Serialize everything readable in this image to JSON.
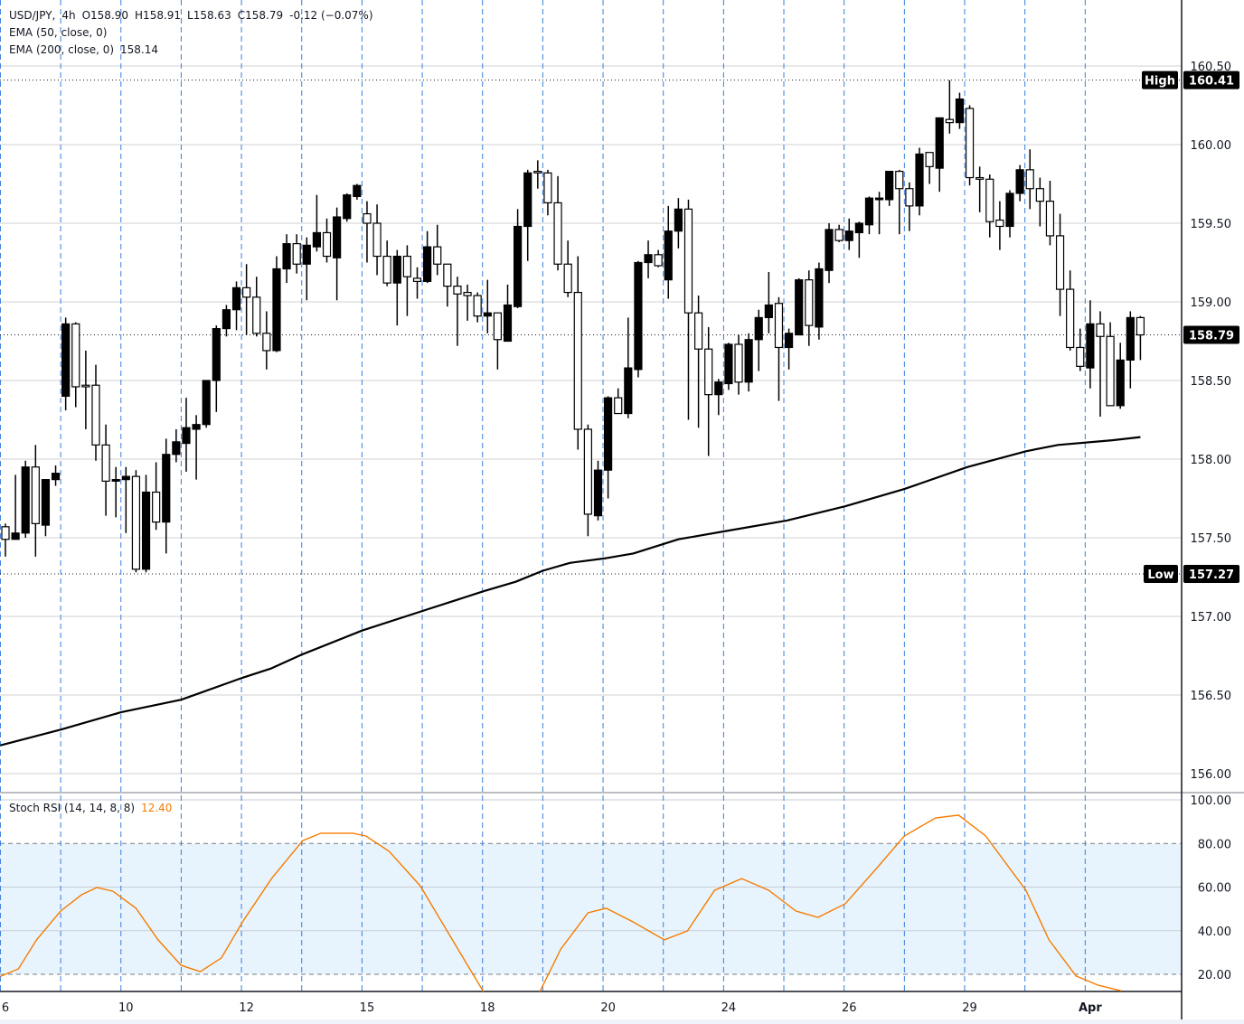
{
  "legend": {
    "symbol": "USD/JPY,",
    "interval": "4h",
    "open": "O158.90",
    "high": "H158.91",
    "low": "L158.63",
    "close": "C158.79",
    "change": "-0.12 (−0.07%)",
    "ema50": "EMA (50, close, 0)",
    "ema200": "EMA (200, close, 0)",
    "ema200_value": "158.14",
    "stoch": "Stoch RSI (14, 14, 8, 8)",
    "stoch_value": "12.40"
  },
  "colors": {
    "bull_candle": "#000000",
    "bear_candle": "#ffffff",
    "ema200": "#000000",
    "stoch_line": "#f57c00",
    "stoch_band": "#e8f4fd",
    "day_separator": "#3b7ddd",
    "grid": "#d0d0d0"
  },
  "chart_data": [
    {
      "type": "candlestick",
      "title": "USD/JPY, 4h",
      "ylim": [
        155.95,
        160.62
      ],
      "y_ticks": [
        "160.50",
        "160.00",
        "159.50",
        "159.00",
        "158.50",
        "158.00",
        "157.50",
        "157.00",
        "156.50",
        "156.00"
      ],
      "x_ticks": [
        {
          "candle": 0,
          "label": "6"
        },
        {
          "candle": 12,
          "label": "10"
        },
        {
          "candle": 24,
          "label": "12"
        },
        {
          "candle": 36,
          "label": "15"
        },
        {
          "candle": 48,
          "label": "18"
        },
        {
          "candle": 60,
          "label": "20"
        },
        {
          "candle": 72,
          "label": "24"
        },
        {
          "candle": 84,
          "label": "26"
        },
        {
          "candle": 96,
          "label": "29"
        },
        {
          "candle": 108,
          "label": "Apr"
        }
      ],
      "grid": true,
      "markers": {
        "high": {
          "label": "High",
          "value": "160.41"
        },
        "low": {
          "label": "Low",
          "value": "157.27"
        },
        "last": {
          "value": "158.79"
        }
      },
      "ohlc": [
        [
          157.57,
          157.59,
          157.38,
          157.49
        ],
        [
          157.49,
          157.9,
          157.49,
          157.53
        ],
        [
          157.53,
          157.99,
          157.5,
          157.95
        ],
        [
          157.95,
          158.09,
          157.38,
          157.59
        ],
        [
          157.58,
          157.87,
          157.51,
          157.87
        ],
        [
          157.87,
          157.96,
          157.83,
          157.91
        ],
        [
          158.4,
          158.9,
          158.31,
          158.86
        ],
        [
          158.86,
          158.87,
          158.33,
          158.46
        ],
        [
          158.47,
          158.69,
          158.19,
          158.46
        ],
        [
          158.47,
          158.6,
          157.99,
          158.09
        ],
        [
          158.09,
          158.22,
          157.64,
          157.86
        ],
        [
          157.86,
          157.95,
          157.63,
          157.87
        ],
        [
          157.87,
          157.95,
          157.53,
          157.89
        ],
        [
          157.89,
          157.93,
          157.28,
          157.3
        ],
        [
          157.3,
          157.9,
          157.28,
          157.79
        ],
        [
          157.79,
          157.98,
          157.55,
          157.6
        ],
        [
          157.6,
          158.13,
          157.4,
          158.03
        ],
        [
          158.03,
          158.19,
          157.98,
          158.11
        ],
        [
          158.1,
          158.39,
          157.92,
          158.2
        ],
        [
          158.19,
          158.28,
          157.87,
          158.22
        ],
        [
          158.22,
          158.5,
          158.2,
          158.5
        ],
        [
          158.5,
          158.85,
          158.3,
          158.83
        ],
        [
          158.83,
          158.98,
          158.78,
          158.95
        ],
        [
          158.95,
          159.13,
          158.82,
          159.09
        ],
        [
          159.09,
          159.24,
          158.79,
          159.03
        ],
        [
          159.03,
          159.16,
          158.78,
          158.8
        ],
        [
          158.8,
          158.94,
          158.57,
          158.69
        ],
        [
          158.69,
          159.29,
          158.68,
          159.21
        ],
        [
          159.21,
          159.43,
          159.12,
          159.37
        ],
        [
          159.37,
          159.43,
          159.18,
          159.24
        ],
        [
          159.24,
          159.41,
          159.01,
          159.36
        ],
        [
          159.35,
          159.68,
          159.32,
          159.44
        ],
        [
          159.44,
          159.53,
          159.25,
          159.29
        ],
        [
          159.28,
          159.6,
          159.01,
          159.54
        ],
        [
          159.53,
          159.69,
          159.51,
          159.68
        ],
        [
          159.67,
          159.75,
          159.65,
          159.74
        ],
        [
          159.56,
          159.64,
          159.25,
          159.5
        ],
        [
          159.5,
          159.62,
          159.17,
          159.29
        ],
        [
          159.29,
          159.39,
          159.1,
          159.12
        ],
        [
          159.12,
          159.33,
          158.85,
          159.29
        ],
        [
          159.29,
          159.36,
          158.91,
          159.16
        ],
        [
          159.15,
          159.22,
          159.02,
          159.13
        ],
        [
          159.13,
          159.45,
          159.12,
          159.35
        ],
        [
          159.35,
          159.49,
          159.17,
          159.24
        ],
        [
          159.24,
          159.24,
          158.97,
          159.1
        ],
        [
          159.1,
          159.16,
          158.72,
          159.05
        ],
        [
          159.06,
          159.11,
          158.88,
          159.04
        ],
        [
          159.04,
          159.06,
          158.87,
          158.91
        ],
        [
          158.91,
          159.14,
          158.8,
          158.93
        ],
        [
          158.93,
          158.93,
          158.57,
          158.76
        ],
        [
          158.75,
          159.11,
          158.75,
          158.98
        ],
        [
          158.97,
          159.59,
          158.96,
          159.48
        ],
        [
          159.48,
          159.84,
          159.26,
          159.82
        ],
        [
          159.83,
          159.9,
          159.72,
          159.82
        ],
        [
          159.82,
          159.84,
          159.55,
          159.63
        ],
        [
          159.63,
          159.8,
          159.2,
          159.24
        ],
        [
          159.24,
          159.39,
          159.03,
          159.06
        ],
        [
          159.06,
          159.29,
          158.06,
          158.19
        ],
        [
          158.19,
          158.22,
          157.51,
          157.65
        ],
        [
          157.64,
          157.99,
          157.61,
          157.93
        ],
        [
          157.93,
          158.4,
          157.75,
          158.39
        ],
        [
          158.39,
          158.45,
          158.29,
          158.29
        ],
        [
          158.29,
          158.9,
          158.26,
          158.58
        ],
        [
          158.57,
          159.26,
          158.52,
          159.25
        ],
        [
          159.25,
          159.39,
          159.15,
          159.3
        ],
        [
          159.3,
          159.33,
          159.22,
          159.23
        ],
        [
          159.14,
          159.61,
          159.02,
          159.45
        ],
        [
          159.45,
          159.66,
          159.34,
          159.59
        ],
        [
          159.59,
          159.65,
          158.25,
          158.93
        ],
        [
          158.93,
          159.04,
          158.2,
          158.7
        ],
        [
          158.7,
          158.84,
          158.02,
          158.41
        ],
        [
          158.41,
          158.51,
          158.28,
          158.49
        ],
        [
          158.48,
          158.74,
          158.44,
          158.73
        ],
        [
          158.73,
          158.79,
          158.41,
          158.49
        ],
        [
          158.49,
          158.8,
          158.43,
          158.76
        ],
        [
          158.76,
          158.95,
          158.56,
          158.9
        ],
        [
          158.9,
          159.19,
          158.8,
          158.98
        ],
        [
          158.99,
          159.03,
          158.37,
          158.71
        ],
        [
          158.71,
          158.83,
          158.57,
          158.8
        ],
        [
          158.79,
          159.15,
          158.79,
          159.14
        ],
        [
          159.14,
          159.2,
          158.72,
          158.85
        ],
        [
          158.84,
          159.25,
          158.76,
          159.21
        ],
        [
          159.2,
          159.5,
          159.12,
          159.46
        ],
        [
          159.46,
          159.49,
          159.38,
          159.39
        ],
        [
          159.39,
          159.53,
          159.33,
          159.45
        ],
        [
          159.44,
          159.51,
          159.28,
          159.5
        ],
        [
          159.49,
          159.67,
          159.43,
          159.66
        ],
        [
          159.65,
          159.7,
          159.43,
          159.66
        ],
        [
          159.65,
          159.83,
          159.61,
          159.83
        ],
        [
          159.83,
          159.84,
          159.43,
          159.72
        ],
        [
          159.72,
          159.76,
          159.45,
          159.61
        ],
        [
          159.61,
          159.98,
          159.55,
          159.94
        ],
        [
          159.95,
          159.95,
          159.75,
          159.86
        ],
        [
          159.85,
          160.17,
          159.7,
          160.17
        ],
        [
          160.16,
          160.41,
          160.07,
          160.14
        ],
        [
          160.14,
          160.33,
          160.1,
          160.29
        ],
        [
          160.23,
          160.25,
          159.74,
          159.79
        ],
        [
          159.79,
          159.86,
          159.57,
          159.78
        ],
        [
          159.78,
          159.81,
          159.41,
          159.51
        ],
        [
          159.52,
          159.64,
          159.33,
          159.48
        ],
        [
          159.48,
          159.71,
          159.41,
          159.69
        ],
        [
          159.69,
          159.87,
          159.64,
          159.84
        ],
        [
          159.84,
          159.97,
          159.59,
          159.72
        ],
        [
          159.72,
          159.79,
          159.48,
          159.64
        ],
        [
          159.64,
          159.77,
          159.36,
          159.42
        ],
        [
          159.42,
          159.56,
          158.91,
          159.08
        ],
        [
          159.08,
          159.2,
          158.69,
          158.71
        ],
        [
          158.71,
          158.83,
          158.56,
          158.59
        ],
        [
          158.58,
          159.01,
          158.45,
          158.86
        ],
        [
          158.86,
          158.94,
          158.27,
          158.78
        ],
        [
          158.78,
          158.87,
          158.34,
          158.34
        ],
        [
          158.34,
          158.74,
          158.32,
          158.63
        ],
        [
          158.63,
          158.94,
          158.45,
          158.9
        ],
        [
          158.9,
          158.91,
          158.63,
          158.79
        ]
      ],
      "ema200": [
        [
          -0.5,
          156.18
        ],
        [
          5.5,
          156.28
        ],
        [
          11.5,
          156.39
        ],
        [
          17.5,
          156.47
        ],
        [
          23.6,
          156.61
        ],
        [
          26.5,
          156.67
        ],
        [
          29.6,
          156.76
        ],
        [
          35.5,
          156.91
        ],
        [
          41.8,
          157.04
        ],
        [
          47.6,
          157.16
        ],
        [
          50.8,
          157.22
        ],
        [
          53.5,
          157.29
        ],
        [
          56.2,
          157.34
        ],
        [
          59.8,
          157.37
        ],
        [
          62.5,
          157.4
        ],
        [
          67,
          157.49
        ],
        [
          71.5,
          157.54
        ],
        [
          77.8,
          157.61
        ],
        [
          83.6,
          157.7
        ],
        [
          89.5,
          157.81
        ],
        [
          95.8,
          157.95
        ],
        [
          101.6,
          158.05
        ],
        [
          104.8,
          158.09
        ],
        [
          110.2,
          158.12
        ],
        [
          113,
          158.14
        ]
      ]
    },
    {
      "type": "line",
      "title": "Stoch RSI (14, 14, 8, 8)",
      "ylim": [
        0,
        100
      ],
      "y_ticks": [
        "100.00",
        "80.00",
        "60.00",
        "40.00",
        "20.00"
      ],
      "band": [
        20,
        80
      ],
      "points": [
        [
          -0.5,
          19
        ],
        [
          1.3,
          22.5
        ],
        [
          3.1,
          35.8
        ],
        [
          5.5,
          49
        ],
        [
          7.6,
          56.5
        ],
        [
          9.1,
          59.8
        ],
        [
          10.7,
          58.1
        ],
        [
          13,
          50.3
        ],
        [
          15.2,
          35.8
        ],
        [
          17.5,
          24.1
        ],
        [
          19.4,
          21.2
        ],
        [
          21.5,
          27.5
        ],
        [
          23.6,
          44
        ],
        [
          26.5,
          63.9
        ],
        [
          29.6,
          81.3
        ],
        [
          31.4,
          84.7
        ],
        [
          34.6,
          84.7
        ],
        [
          35.9,
          83.4
        ],
        [
          38.2,
          76.4
        ],
        [
          41.3,
          60.6
        ],
        [
          44.5,
          35.8
        ],
        [
          47.6,
          12
        ],
        [
          49.9,
          5
        ],
        [
          51.7,
          5
        ],
        [
          53.2,
          12
        ],
        [
          55.3,
          31.6
        ],
        [
          58,
          48.2
        ],
        [
          59.8,
          50.3
        ],
        [
          62.5,
          44
        ],
        [
          65.6,
          35.8
        ],
        [
          67.9,
          39.9
        ],
        [
          70.6,
          58.5
        ],
        [
          73.3,
          63.9
        ],
        [
          76,
          58.5
        ],
        [
          78.7,
          49
        ],
        [
          80.9,
          46.1
        ],
        [
          83.6,
          52.3
        ],
        [
          86.8,
          68.9
        ],
        [
          89.5,
          83.4
        ],
        [
          92.6,
          91.7
        ],
        [
          94.9,
          93
        ],
        [
          97.6,
          83.4
        ],
        [
          101.6,
          58.5
        ],
        [
          103.9,
          35.8
        ],
        [
          106.6,
          19.2
        ],
        [
          108.8,
          15
        ],
        [
          111.1,
          12.4
        ]
      ]
    }
  ]
}
